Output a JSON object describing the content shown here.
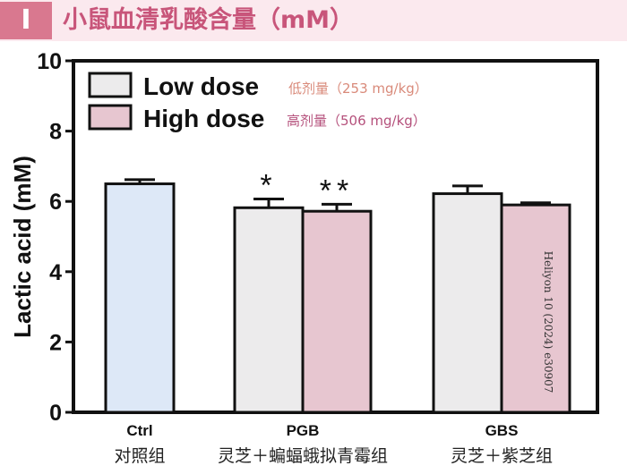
{
  "header": {
    "tag": "I",
    "title": "小鼠血清乳酸含量（mM）"
  },
  "credit": "Heliyon 10 (2024) e30907",
  "colors": {
    "header_bg": "#fbe9ee",
    "tag_bg": "#d9788f",
    "title": "#c8557a",
    "ctrl_bar": "#dde8f7",
    "low_bar": "#ecebec",
    "high_bar": "#e7c6d0",
    "low_cn": "#d98a7a",
    "high_cn": "#b5517c"
  },
  "chart_data": {
    "type": "bar",
    "ylabel": "Lactic acid (mM)",
    "ylim": [
      0,
      10
    ],
    "yticks": [
      0,
      2,
      4,
      6,
      8,
      10
    ],
    "groups": [
      {
        "label": "Ctrl",
        "label_cn": "对照组"
      },
      {
        "label": "PGB",
        "label_cn": "灵芝＋蝙蝠蛾拟青霉组"
      },
      {
        "label": "GBS",
        "label_cn": "灵芝＋紫芝组"
      }
    ],
    "control": {
      "value": 6.5,
      "error": 0.12
    },
    "series": [
      {
        "name": "Low dose",
        "name_cn": "低剂量（253 mg/kg）",
        "values": [
          null,
          5.82,
          6.22
        ],
        "errors": [
          null,
          0.25,
          0.22
        ],
        "stars": [
          null,
          "*",
          null
        ]
      },
      {
        "name": "High dose",
        "name_cn": "高剂量（506 mg/kg）",
        "values": [
          null,
          5.72,
          5.9
        ],
        "errors": [
          null,
          0.2,
          0.06
        ],
        "stars": [
          null,
          "**",
          null
        ]
      }
    ]
  }
}
